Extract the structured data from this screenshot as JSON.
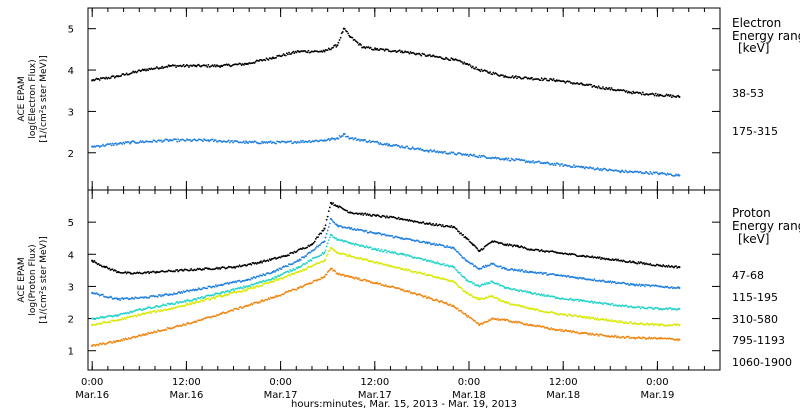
{
  "chart_data": [
    {
      "type": "scatter",
      "panel": "electron",
      "ylabel_lines": [
        "ACE EPAM",
        "log(Electron Flux)",
        "[1/(cm²s ster MeV)]"
      ],
      "yticks": [
        "2",
        "3",
        "4",
        "5"
      ],
      "ylim": [
        1.1,
        5.5
      ],
      "xlim": [
        -0.65,
        97.3
      ],
      "legend_title_lines": [
        "Electron",
        "Energy ranges",
        "[keV]"
      ],
      "series": [
        {
          "name": "38-53",
          "color": "#000000",
          "x": [
            0,
            4,
            8,
            12,
            16,
            20,
            24,
            28,
            32,
            36,
            38,
            39,
            40,
            42,
            44,
            48,
            52,
            56,
            58,
            60,
            64,
            68,
            72,
            76,
            80,
            84,
            88,
            91
          ],
          "y": [
            3.75,
            3.85,
            4.0,
            4.1,
            4.1,
            4.1,
            4.15,
            4.3,
            4.45,
            4.45,
            4.6,
            5.0,
            4.8,
            4.55,
            4.5,
            4.45,
            4.35,
            4.25,
            4.15,
            4.0,
            3.85,
            3.8,
            3.75,
            3.65,
            3.55,
            3.45,
            3.4,
            3.35
          ]
        },
        {
          "name": "175-315",
          "color": "#1f7fe0",
          "x": [
            0,
            6,
            12,
            18,
            24,
            30,
            36,
            38,
            39,
            40,
            42,
            46,
            52,
            58,
            64,
            70,
            76,
            82,
            88,
            91
          ],
          "y": [
            2.15,
            2.25,
            2.3,
            2.3,
            2.25,
            2.25,
            2.3,
            2.35,
            2.45,
            2.35,
            2.3,
            2.2,
            2.05,
            1.95,
            1.85,
            1.75,
            1.65,
            1.55,
            1.5,
            1.45
          ]
        }
      ]
    },
    {
      "type": "scatter",
      "panel": "proton",
      "ylabel_lines": [
        "ACE EPAM",
        "log(Proton Flux)",
        "[1/(cm²s ster MeV)]"
      ],
      "yticks": [
        "1",
        "2",
        "3",
        "4",
        "5"
      ],
      "ylim": [
        0.4,
        6.0
      ],
      "xlim": [
        -0.65,
        97.3
      ],
      "xticks": [
        "0:00\nMar.16",
        "12:00\nMar.16",
        "0:00\nMar.17",
        "12:00\nMar.17",
        "0:00\nMar.18",
        "12:00\nMar.18",
        "0:00\nMar.19"
      ],
      "xtick_values": [
        0,
        14.6,
        29.2,
        43.8,
        58.4,
        73.0,
        87.6
      ],
      "xlabel": "hours:minutes, Mar. 15, 2013 - Mar. 19, 2013",
      "legend_title_lines": [
        "Proton",
        "Energy ranges",
        "[keV]"
      ],
      "series": [
        {
          "name": "47-68",
          "color": "#000000",
          "x": [
            0,
            2,
            4,
            6,
            10,
            14,
            18,
            22,
            26,
            30,
            34,
            36,
            37,
            38,
            40,
            44,
            48,
            52,
            56,
            58,
            59,
            60,
            62,
            64,
            66,
            68,
            72,
            76,
            80,
            84,
            88,
            91
          ],
          "y": [
            3.8,
            3.6,
            3.45,
            3.4,
            3.45,
            3.5,
            3.55,
            3.6,
            3.75,
            3.95,
            4.3,
            4.8,
            5.6,
            5.5,
            5.3,
            5.2,
            5.1,
            4.95,
            4.85,
            4.5,
            4.3,
            4.1,
            4.4,
            4.3,
            4.25,
            4.15,
            4.05,
            3.95,
            3.85,
            3.75,
            3.65,
            3.6
          ]
        },
        {
          "name": "115-195",
          "color": "#1f7fe0",
          "x": [
            0,
            4,
            8,
            12,
            16,
            20,
            24,
            28,
            32,
            36,
            37,
            38,
            40,
            44,
            48,
            52,
            56,
            58,
            60,
            62,
            64,
            68,
            72,
            76,
            80,
            84,
            88,
            91
          ],
          "y": [
            2.8,
            2.6,
            2.65,
            2.75,
            2.9,
            3.05,
            3.2,
            3.45,
            3.8,
            4.4,
            5.1,
            4.9,
            4.8,
            4.65,
            4.5,
            4.35,
            4.2,
            3.8,
            3.55,
            3.7,
            3.55,
            3.45,
            3.35,
            3.25,
            3.15,
            3.05,
            3.0,
            2.95
          ]
        },
        {
          "name": "310-580",
          "color": "#22d3c9",
          "x": [
            0,
            4,
            8,
            12,
            16,
            20,
            24,
            28,
            32,
            36,
            37,
            38,
            40,
            44,
            48,
            52,
            56,
            58,
            60,
            62,
            64,
            68,
            72,
            76,
            80,
            84,
            88,
            91
          ],
          "y": [
            2.0,
            2.1,
            2.3,
            2.45,
            2.6,
            2.8,
            3.0,
            3.25,
            3.6,
            4.05,
            4.6,
            4.45,
            4.35,
            4.15,
            4.0,
            3.8,
            3.6,
            3.2,
            3.0,
            3.15,
            2.95,
            2.8,
            2.65,
            2.55,
            2.45,
            2.35,
            2.3,
            2.3
          ]
        },
        {
          "name": "795-1193",
          "color": "#d8e800",
          "x": [
            0,
            4,
            8,
            12,
            16,
            20,
            24,
            28,
            32,
            36,
            37,
            38,
            40,
            44,
            48,
            52,
            56,
            58,
            60,
            62,
            64,
            68,
            72,
            76,
            80,
            84,
            88,
            91
          ],
          "y": [
            1.8,
            1.95,
            2.15,
            2.3,
            2.5,
            2.7,
            2.9,
            3.15,
            3.45,
            3.8,
            4.2,
            4.05,
            3.95,
            3.75,
            3.55,
            3.35,
            3.15,
            2.8,
            2.6,
            2.7,
            2.5,
            2.3,
            2.15,
            2.05,
            1.95,
            1.85,
            1.8,
            1.8
          ]
        },
        {
          "name": "1060-1900",
          "color": "#f0840e",
          "x": [
            0,
            4,
            8,
            12,
            16,
            20,
            24,
            28,
            32,
            36,
            37,
            38,
            40,
            44,
            48,
            52,
            56,
            58,
            60,
            62,
            64,
            68,
            72,
            76,
            80,
            84,
            88,
            91
          ],
          "y": [
            1.15,
            1.3,
            1.5,
            1.7,
            1.9,
            2.15,
            2.4,
            2.65,
            2.95,
            3.3,
            3.55,
            3.4,
            3.3,
            3.1,
            2.9,
            2.65,
            2.4,
            2.1,
            1.8,
            2.0,
            1.95,
            1.8,
            1.65,
            1.55,
            1.45,
            1.4,
            1.38,
            1.35
          ]
        }
      ]
    }
  ]
}
